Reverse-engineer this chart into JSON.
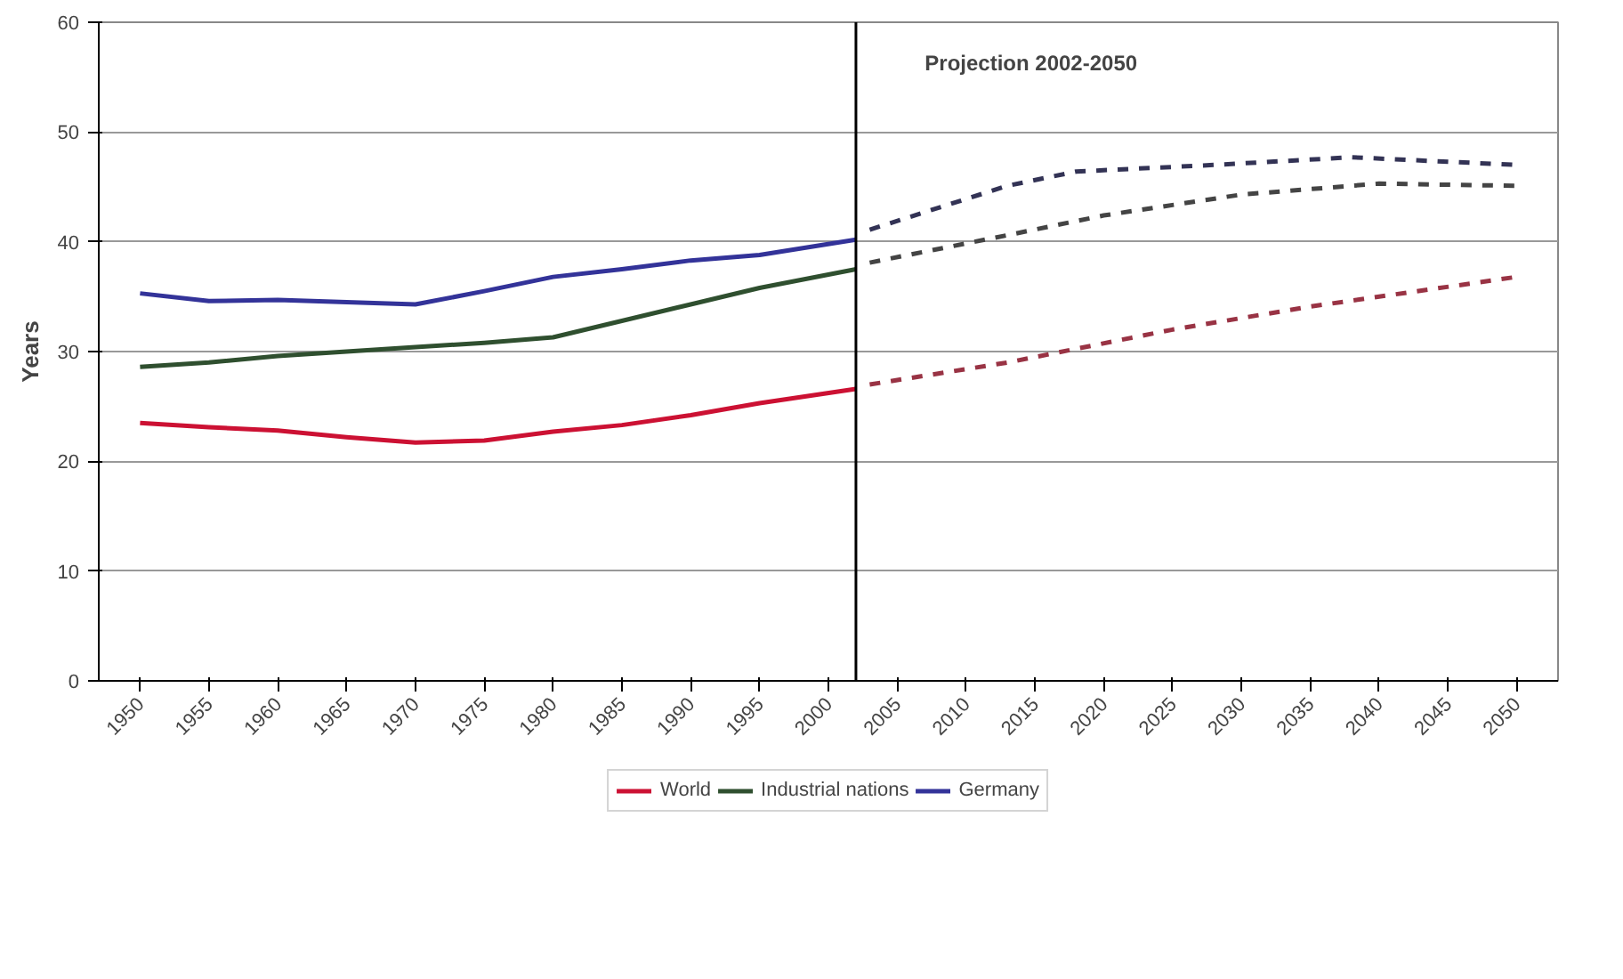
{
  "chart_data": {
    "type": "line",
    "ylabel": "Years",
    "xlim": [
      1947,
      2053
    ],
    "xticks": [
      1950,
      1955,
      1960,
      1965,
      1970,
      1975,
      1980,
      1985,
      1990,
      1995,
      2000,
      2005,
      2010,
      2015,
      2020,
      2025,
      2030,
      2035,
      2040,
      2045,
      2050
    ],
    "ylim": [
      0,
      60
    ],
    "yticks": [
      0,
      10,
      20,
      30,
      40,
      50,
      60
    ],
    "series": [
      {
        "name": "World",
        "color": "#cc1133",
        "x": [
          1950,
          1955,
          1960,
          1965,
          1970,
          1975,
          1980,
          1985,
          1990,
          1995,
          2002
        ],
        "values": [
          23.5,
          23.1,
          22.8,
          22.2,
          21.7,
          21.9,
          22.7,
          23.3,
          24.2,
          25.3,
          26.6
        ]
      },
      {
        "name": "Industrial nations",
        "color": "#2f4f2f",
        "x": [
          1950,
          1955,
          1960,
          1965,
          1970,
          1975,
          1980,
          1985,
          1990,
          1995,
          2002
        ],
        "values": [
          28.6,
          29.0,
          29.6,
          30.0,
          30.4,
          30.8,
          31.3,
          32.8,
          34.3,
          35.8,
          37.5
        ]
      },
      {
        "name": "Germany",
        "color": "#333399",
        "x": [
          1950,
          1955,
          1960,
          1965,
          1970,
          1975,
          1980,
          1985,
          1990,
          1995,
          2002
        ],
        "values": [
          35.3,
          34.6,
          34.7,
          34.5,
          34.3,
          35.5,
          36.8,
          37.5,
          38.3,
          38.8,
          40.2
        ]
      },
      {
        "color": "#993344",
        "line_style": "dashed",
        "x": [
          2003,
          2013,
          2025,
          2035,
          2050
        ],
        "values": [
          27.0,
          29.0,
          32.0,
          34.1,
          36.8
        ]
      },
      {
        "color": "#444444",
        "line_style": "dashed",
        "x": [
          2003,
          2013,
          2020,
          2030,
          2040,
          2050
        ],
        "values": [
          38.1,
          40.6,
          42.4,
          44.3,
          45.3,
          45.1
        ]
      },
      {
        "color": "#333355",
        "line_style": "dashed",
        "x": [
          2003,
          2013,
          2018,
          2028,
          2038,
          2050
        ],
        "values": [
          41.1,
          45.1,
          46.4,
          47.0,
          47.7,
          47.0
        ]
      }
    ],
    "ref_lines": [
      {
        "axis": "x",
        "value": 2002,
        "color": "#000000"
      }
    ],
    "annotations": [
      "Projection 2002-2050"
    ],
    "grid": "y",
    "legend": "bottom"
  }
}
